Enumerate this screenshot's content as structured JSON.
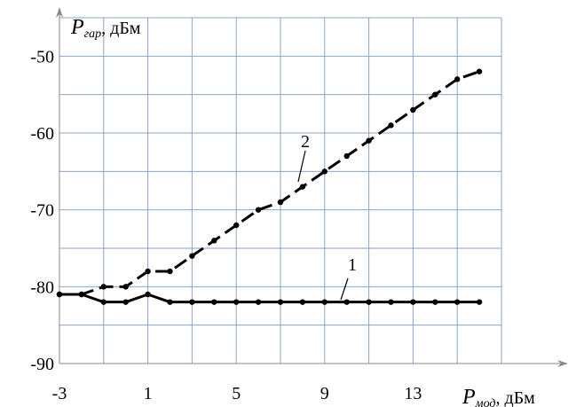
{
  "chart_data": {
    "type": "line",
    "x": [
      -3,
      -2,
      -1,
      0,
      1,
      2,
      3,
      4,
      5,
      6,
      7,
      8,
      9,
      10,
      11,
      12,
      13,
      14,
      15,
      16
    ],
    "series": [
      {
        "name": "1",
        "style": "solid",
        "color": "#000000",
        "values": [
          -81,
          -81,
          -82,
          -82,
          -81,
          -82,
          -82,
          -82,
          -82,
          -82,
          -82,
          -82,
          -82,
          -82,
          -82,
          -82,
          -82,
          -82,
          -82,
          -82
        ]
      },
      {
        "name": "2",
        "style": "dashed",
        "color": "#000000",
        "values": [
          -81,
          -81,
          -80,
          -80,
          -78,
          -78,
          -76,
          -74,
          -72,
          -70,
          -69,
          -67,
          -65,
          -63,
          -61,
          -59,
          -57,
          -55,
          -53,
          -52
        ]
      }
    ],
    "xticks": [
      -3,
      1,
      5,
      9,
      13
    ],
    "yticks": [
      -90,
      -80,
      -70,
      -60,
      -50
    ],
    "xlim": [
      -3,
      17
    ],
    "ylim": [
      -90,
      -45
    ],
    "grid": true,
    "grid_color": "#8aa6c8",
    "xlabel": {
      "main": "P",
      "sub": "мод",
      "unit": ", дБм"
    },
    "ylabel": {
      "main": "P",
      "sub": "гар",
      "unit": ", дБм"
    }
  }
}
